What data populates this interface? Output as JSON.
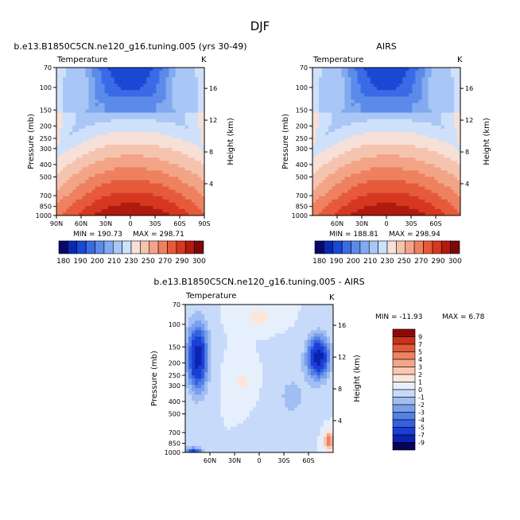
{
  "page_title": "DJF",
  "colors": {
    "ctrl_palette": [
      "#08086b",
      "#0a28b4",
      "#1b48d4",
      "#3a6ae6",
      "#5c8ae8",
      "#82aaf0",
      "#a8c6f6",
      "#cfe0fa",
      "#f6e0d8",
      "#f5c4ae",
      "#f3a487",
      "#ee815f",
      "#e65a3b",
      "#d6381f",
      "#b01a0f",
      "#7a0808"
    ],
    "diff_palette": [
      "#04045a",
      "#0c22b0",
      "#1a3fd6",
      "#3560e0",
      "#5580e6",
      "#7aa0ec",
      "#a0bef2",
      "#c8dafa",
      "#e6f0fc",
      "#fbe6dc",
      "#f8c8b2",
      "#f3a688",
      "#ec8262",
      "#e05a3a",
      "#c83218",
      "#8c0a06"
    ]
  },
  "chart_data": [
    {
      "type": "heatmap",
      "id": "model",
      "title": "b.e13.B1850C5CN.ne120_g16.tuning.005 (yrs 30-49)",
      "left_label": "Temperature",
      "right_label": "K",
      "xlabel": "",
      "ylabel": "Pressure (mb)",
      "ylabel_right": "Height (km)",
      "xticks": [
        "90N",
        "60N",
        "30N",
        "0",
        "30S",
        "60S",
        "90S"
      ],
      "yticks": [
        "70",
        "100",
        "150",
        "200",
        "250",
        "300",
        "400",
        "500",
        "700",
        "850",
        "1000"
      ],
      "height_ticks": [
        "16",
        "12",
        "8",
        "4"
      ],
      "min_text": "MIN = 190.73",
      "max_text": "MAX = 298.71",
      "ylim": [
        1000,
        70
      ],
      "xlim": [
        90,
        -90
      ]
    },
    {
      "type": "heatmap",
      "id": "airs",
      "title": "AIRS",
      "left_label": "Temperature",
      "right_label": "K",
      "xlabel": "",
      "ylabel": "Pressure (mb)",
      "ylabel_right": "Height (km)",
      "xticks": [
        "60N",
        "30N",
        "0",
        "30S",
        "60S"
      ],
      "yticks": [
        "70",
        "100",
        "150",
        "200",
        "250",
        "300",
        "400",
        "500",
        "700",
        "850",
        "1000"
      ],
      "height_ticks": [
        "16",
        "12",
        "8",
        "4"
      ],
      "min_text": "MIN = 188.81",
      "max_text": "MAX = 298.94",
      "ylim": [
        1000,
        70
      ],
      "xlim": [
        90,
        -90
      ]
    },
    {
      "type": "heatmap",
      "id": "diff",
      "title": "b.e13.B1850C5CN.ne120_g16.tuning.005 - AIRS",
      "left_label": "Temperature",
      "right_label": "K",
      "xlabel": "",
      "ylabel": "Pressure (mb)",
      "ylabel_right": "Height (km)",
      "xticks": [
        "60N",
        "30N",
        "0",
        "30S",
        "60S"
      ],
      "yticks": [
        "70",
        "100",
        "150",
        "200",
        "250",
        "300",
        "400",
        "500",
        "700",
        "850",
        "1000"
      ],
      "height_ticks": [
        "16",
        "12",
        "8",
        "4"
      ],
      "min_text": "MIN = -11.93",
      "max_text": "MAX =   6.78",
      "ylim": [
        1000,
        70
      ],
      "xlim": [
        90,
        -90
      ]
    }
  ],
  "colorbars": {
    "control": {
      "labels": [
        "180",
        "190",
        "200",
        "210",
        "230",
        "250",
        "270",
        "290",
        "300"
      ]
    },
    "diff": {
      "labels": [
        "9",
        "7",
        "5",
        "4",
        "3",
        "2",
        "1",
        "0",
        "-1",
        "-2",
        "-3",
        "-4",
        "-5",
        "-7",
        "-9"
      ]
    }
  }
}
